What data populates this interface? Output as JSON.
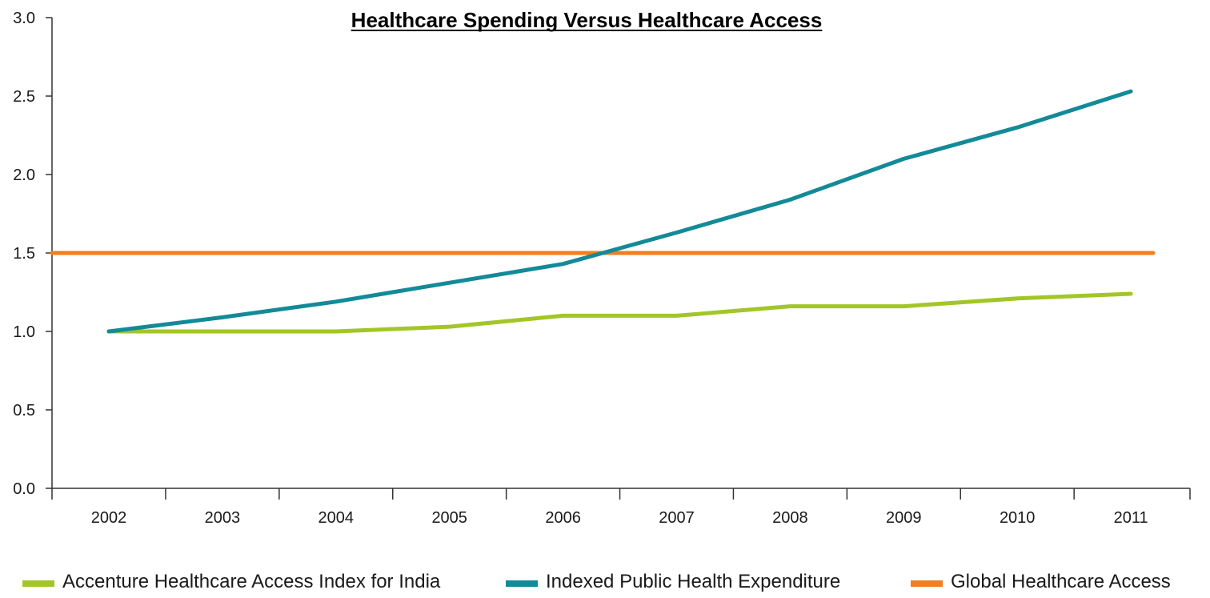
{
  "chart_data": {
    "type": "line",
    "title": "Healthcare Spending Versus Healthcare Access",
    "xlabel": "",
    "ylabel": "",
    "ylim": [
      0,
      3
    ],
    "yticks": [
      "0.0",
      "0.5",
      "1.0",
      "1.5",
      "2.0",
      "2.5",
      "3.0"
    ],
    "categories": [
      "2002",
      "2003",
      "2004",
      "2005",
      "2006",
      "2007",
      "2008",
      "2009",
      "2010",
      "2011"
    ],
    "grid": false,
    "legend_position": "bottom",
    "series": [
      {
        "name": "Accenture Healthcare Access Index for India",
        "color": "#a3c626",
        "values": [
          1.0,
          1.0,
          1.0,
          1.03,
          1.1,
          1.1,
          1.16,
          1.16,
          1.21,
          1.24
        ]
      },
      {
        "name": "Indexed Public Health Expenditure",
        "color": "#138a97",
        "values": [
          1.0,
          1.09,
          1.19,
          1.31,
          1.43,
          1.63,
          1.84,
          2.1,
          2.3,
          2.53
        ]
      },
      {
        "name": "Global Healthcare Access",
        "color": "#f07f22",
        "values": [
          1.5,
          1.5,
          1.5,
          1.5,
          1.5,
          1.5,
          1.5,
          1.5,
          1.5,
          1.5
        ],
        "spans_full_axis": true
      }
    ]
  }
}
